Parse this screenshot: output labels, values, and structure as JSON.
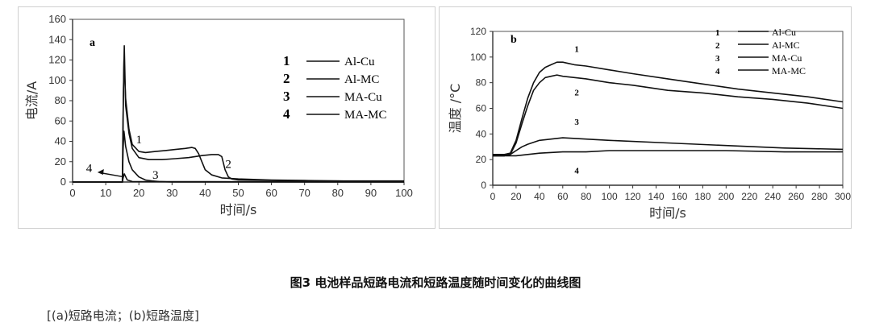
{
  "caption": "图3 电池样品短路电流和短路温度随时间变化的曲线图",
  "subcaption": "[(a)短路电流；(b)短路温度]",
  "chart_data": [
    {
      "type": "line",
      "panel_label": "a",
      "xlabel": "时间/s",
      "ylabel": "电流/A",
      "xlim": [
        0,
        100
      ],
      "ylim": [
        0,
        160
      ],
      "xticks": [
        0,
        10,
        20,
        30,
        40,
        50,
        60,
        70,
        80,
        90,
        100
      ],
      "yticks": [
        0,
        20,
        40,
        60,
        80,
        100,
        120,
        140,
        160
      ],
      "grid": false,
      "legend_position": "top-right",
      "legend": [
        {
          "num": "1",
          "label": "Al-Cu"
        },
        {
          "num": "2",
          "label": "Al-MC"
        },
        {
          "num": "3",
          "label": "MA-Cu"
        },
        {
          "num": "4",
          "label": "MA-MC"
        }
      ],
      "curve_labels": [
        "1",
        "2",
        "3",
        "4"
      ],
      "series": [
        {
          "num": "1",
          "x": [
            0,
            15,
            15.2,
            15.5,
            16,
            17,
            18,
            20,
            22,
            25,
            28,
            31,
            34,
            36,
            37,
            38,
            39,
            40,
            42,
            45,
            50,
            60,
            70,
            80,
            90,
            100
          ],
          "y": [
            0,
            0,
            60,
            120,
            82,
            52,
            37,
            30,
            29,
            30,
            31,
            32,
            33,
            34,
            33,
            28,
            20,
            12,
            7,
            4,
            3,
            2,
            1.5,
            1,
            1,
            1
          ]
        },
        {
          "num": "2",
          "x": [
            0,
            15.1,
            15.3,
            15.6,
            16,
            17,
            18,
            20,
            23,
            27,
            31,
            35,
            39,
            42,
            44,
            45,
            46,
            47,
            48,
            50,
            60,
            70,
            80,
            90,
            100
          ],
          "y": [
            0,
            0,
            80,
            134,
            75,
            48,
            33,
            24,
            22,
            22,
            23,
            24,
            26,
            27,
            27,
            25,
            12,
            5,
            3,
            2,
            1.5,
            1,
            1,
            0.5,
            0.5
          ]
        },
        {
          "num": "3",
          "x": [
            0,
            15,
            15.2,
            15.5,
            16,
            17,
            18,
            20,
            22,
            24,
            26,
            30,
            40,
            100
          ],
          "y": [
            0,
            0,
            30,
            50,
            35,
            20,
            12,
            5,
            2,
            1,
            0.5,
            0,
            0,
            0
          ]
        },
        {
          "num": "4",
          "x": [
            0,
            15,
            15.3,
            15.6,
            16.5,
            18,
            100
          ],
          "y": [
            0,
            0,
            5,
            8,
            2,
            0.5,
            0
          ]
        }
      ]
    },
    {
      "type": "line",
      "panel_label": "b",
      "xlabel": "时间/s",
      "ylabel": "温度 /°C",
      "xlim": [
        0,
        300
      ],
      "ylim": [
        0,
        120
      ],
      "xticks": [
        0,
        20,
        40,
        60,
        80,
        100,
        120,
        140,
        160,
        180,
        200,
        220,
        240,
        260,
        280,
        300
      ],
      "yticks": [
        0,
        20,
        40,
        60,
        80,
        100,
        120
      ],
      "grid": false,
      "legend_position": "top-right",
      "legend": [
        {
          "num": "1",
          "label": "Al-Cu"
        },
        {
          "num": "2",
          "label": "Al-MC"
        },
        {
          "num": "3",
          "label": "MA-Cu"
        },
        {
          "num": "4",
          "label": "MA-MC"
        }
      ],
      "curve_labels": [
        "1",
        "2",
        "3",
        "4"
      ],
      "series": [
        {
          "num": "1",
          "x": [
            0,
            10,
            15,
            20,
            25,
            30,
            35,
            40,
            45,
            50,
            55,
            60,
            65,
            70,
            80,
            100,
            120,
            150,
            180,
            210,
            240,
            270,
            300
          ],
          "y": [
            24,
            24,
            25,
            35,
            52,
            68,
            80,
            88,
            92,
            94,
            96,
            96,
            95,
            94,
            93,
            90,
            87,
            83,
            79,
            75,
            72,
            69,
            65
          ]
        },
        {
          "num": "2",
          "x": [
            0,
            10,
            15,
            20,
            25,
            30,
            35,
            40,
            45,
            50,
            55,
            60,
            70,
            80,
            100,
            120,
            150,
            180,
            210,
            240,
            270,
            300
          ],
          "y": [
            23,
            23,
            24,
            33,
            48,
            62,
            74,
            80,
            84,
            85,
            86,
            85,
            84,
            83,
            80,
            78,
            74,
            72,
            69,
            67,
            64,
            60
          ]
        },
        {
          "num": "3",
          "x": [
            0,
            10,
            15,
            20,
            25,
            30,
            40,
            50,
            60,
            80,
            100,
            150,
            200,
            250,
            300
          ],
          "y": [
            23,
            23,
            24,
            27,
            30,
            32,
            35,
            36,
            37,
            36,
            35,
            33,
            31,
            29,
            28
          ]
        },
        {
          "num": "4",
          "x": [
            0,
            10,
            15,
            20,
            30,
            40,
            60,
            80,
            100,
            150,
            200,
            250,
            300
          ],
          "y": [
            23,
            23,
            23,
            23,
            24,
            25,
            26,
            26,
            27,
            27,
            27,
            26,
            26
          ]
        }
      ]
    }
  ]
}
